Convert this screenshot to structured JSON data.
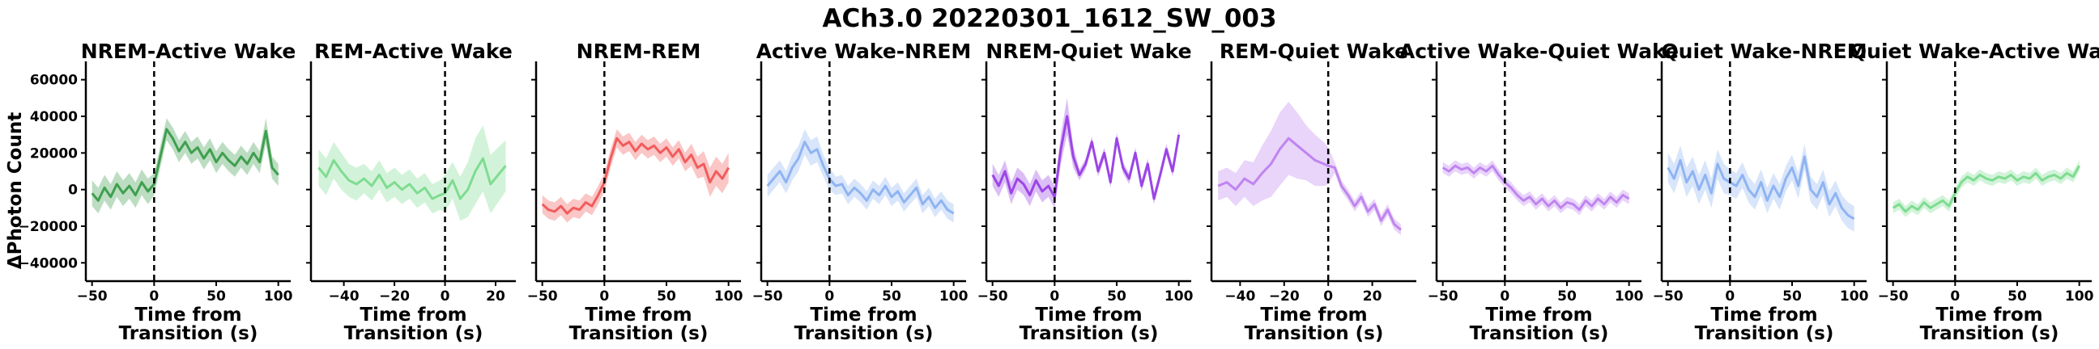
{
  "figure": {
    "suptitle": "ACh3.0 20220301_1612_SW_003",
    "ylabel": "ΔPhoton Count",
    "xlabel_line1": "Time from",
    "xlabel_line2": "Transition (s)"
  },
  "colors": {
    "green_dark": "#3f9f4f",
    "green_light": "#7fdc91",
    "red": "#f25c5c",
    "blue": "#8fb4f2",
    "purple_dark": "#9b45e6",
    "purple_light": "#bf85f0"
  },
  "chart_data": [
    {
      "type": "line",
      "title": "NREM-Active Wake",
      "color_key": "green_dark",
      "xlim": [
        -55,
        110
      ],
      "xticks": [
        -50,
        0,
        50,
        100
      ],
      "ylim": [
        -50000,
        70000
      ],
      "yticks": [
        -40000,
        -20000,
        0,
        20000,
        40000,
        60000
      ],
      "x": [
        -50,
        -45,
        -40,
        -35,
        -30,
        -25,
        -20,
        -15,
        -10,
        -5,
        0,
        5,
        10,
        15,
        20,
        25,
        30,
        35,
        40,
        45,
        50,
        55,
        60,
        65,
        70,
        75,
        80,
        85,
        90,
        95,
        100
      ],
      "mean": [
        -2000,
        -6000,
        1000,
        -4000,
        3000,
        -2000,
        2000,
        -3000,
        4000,
        -1000,
        3000,
        18000,
        33000,
        28000,
        21000,
        26000,
        20000,
        23000,
        17000,
        22000,
        15000,
        20000,
        16000,
        13000,
        18000,
        14000,
        20000,
        15000,
        32000,
        12000,
        8000
      ],
      "sem": [
        7000,
        7000,
        7000,
        7000,
        7000,
        7000,
        7000,
        7000,
        7000,
        7000,
        6000,
        6000,
        6000,
        6000,
        6000,
        6000,
        6000,
        6000,
        6000,
        6000,
        6000,
        6000,
        6000,
        6000,
        6000,
        6000,
        6000,
        6000,
        7000,
        6000,
        6000
      ]
    },
    {
      "type": "line",
      "title": "REM-Active Wake",
      "color_key": "green_light",
      "xlim": [
        -53,
        28
      ],
      "xticks": [
        -40,
        -20,
        0,
        20
      ],
      "ylim": [
        -50000,
        70000
      ],
      "yticks": [
        -40000,
        -20000,
        0,
        20000,
        40000,
        60000
      ],
      "x": [
        -50,
        -47,
        -44,
        -41,
        -38,
        -35,
        -32,
        -29,
        -26,
        -23,
        -20,
        -17,
        -14,
        -11,
        -8,
        -5,
        -2,
        0,
        3,
        6,
        9,
        12,
        15,
        18,
        21,
        24
      ],
      "mean": [
        12000,
        7000,
        16000,
        10000,
        5000,
        3000,
        6000,
        2000,
        8000,
        1000,
        4000,
        0,
        3000,
        -2000,
        1000,
        -5000,
        -3000,
        -2000,
        5000,
        -5000,
        0,
        10000,
        17000,
        3000,
        8000,
        13000
      ],
      "sem": [
        10000,
        10000,
        10000,
        10000,
        9000,
        9000,
        8000,
        8000,
        8000,
        8000,
        8000,
        8000,
        8000,
        8000,
        8000,
        8000,
        8000,
        10000,
        10000,
        12000,
        15000,
        18000,
        18000,
        16000,
        15000,
        14000
      ]
    },
    {
      "type": "line",
      "title": "NREM-REM",
      "color_key": "red",
      "xlim": [
        -55,
        110
      ],
      "xticks": [
        -50,
        0,
        50,
        100
      ],
      "ylim": [
        -50000,
        70000
      ],
      "yticks": [
        -40000,
        -20000,
        0,
        20000,
        40000,
        60000
      ],
      "x": [
        -50,
        -45,
        -40,
        -35,
        -30,
        -25,
        -20,
        -15,
        -10,
        -5,
        0,
        5,
        10,
        15,
        20,
        25,
        30,
        35,
        40,
        45,
        50,
        55,
        60,
        65,
        70,
        75,
        80,
        85,
        90,
        95,
        100
      ],
      "mean": [
        -8000,
        -11000,
        -12000,
        -9000,
        -13000,
        -10000,
        -11000,
        -7000,
        -9000,
        -3000,
        4000,
        17000,
        28000,
        24000,
        26000,
        21000,
        25000,
        22000,
        24000,
        20000,
        23000,
        18000,
        22000,
        15000,
        19000,
        12000,
        14000,
        4000,
        10000,
        6000,
        12000
      ],
      "sem": [
        5000,
        5000,
        5000,
        5000,
        5000,
        5000,
        5000,
        5000,
        5000,
        5000,
        5000,
        5000,
        5000,
        5000,
        5000,
        5000,
        5000,
        5000,
        5000,
        5000,
        5000,
        5000,
        5000,
        5000,
        6000,
        6000,
        7000,
        8000,
        8000,
        8000,
        8000
      ]
    },
    {
      "type": "line",
      "title": "Active Wake-NREM",
      "color_key": "blue",
      "xlim": [
        -55,
        110
      ],
      "xticks": [
        -50,
        0,
        50,
        100
      ],
      "ylim": [
        -50000,
        70000
      ],
      "yticks": [
        -40000,
        -20000,
        0,
        20000,
        40000,
        60000
      ],
      "x": [
        -50,
        -45,
        -40,
        -35,
        -30,
        -25,
        -20,
        -15,
        -10,
        -5,
        0,
        5,
        10,
        15,
        20,
        25,
        30,
        35,
        40,
        45,
        50,
        55,
        60,
        65,
        70,
        75,
        80,
        85,
        90,
        95,
        100
      ],
      "mean": [
        2000,
        6000,
        10000,
        4000,
        12000,
        17000,
        26000,
        20000,
        22000,
        13000,
        6000,
        2000,
        3000,
        -3000,
        1000,
        -2000,
        -6000,
        0,
        -3000,
        2000,
        -4000,
        -1000,
        -7000,
        -3000,
        1000,
        -8000,
        -4000,
        -10000,
        -6000,
        -11000,
        -13000
      ],
      "sem": [
        6000,
        6000,
        6000,
        6000,
        7000,
        7000,
        7000,
        7000,
        7000,
        6000,
        6000,
        5000,
        5000,
        5000,
        5000,
        5000,
        5000,
        5000,
        5000,
        5000,
        5000,
        5000,
        5000,
        5000,
        5000,
        5000,
        5000,
        5000,
        5000,
        5000,
        5000
      ]
    },
    {
      "type": "line",
      "title": "NREM-Quiet Wake",
      "color_key": "purple_dark",
      "xlim": [
        -55,
        110
      ],
      "xticks": [
        -50,
        0,
        50,
        100
      ],
      "ylim": [
        -50000,
        70000
      ],
      "yticks": [
        -40000,
        -20000,
        0,
        20000,
        40000,
        60000
      ],
      "x": [
        -50,
        -45,
        -40,
        -35,
        -30,
        -25,
        -20,
        -15,
        -10,
        -5,
        0,
        5,
        10,
        15,
        20,
        25,
        30,
        35,
        40,
        45,
        50,
        55,
        60,
        65,
        70,
        75,
        80,
        85,
        90,
        95,
        100
      ],
      "mean": [
        8000,
        2000,
        10000,
        -2000,
        6000,
        3000,
        -3000,
        5000,
        -1000,
        2000,
        -4000,
        22000,
        40000,
        18000,
        8000,
        14000,
        26000,
        10000,
        20000,
        4000,
        28000,
        12000,
        6000,
        20000,
        2000,
        14000,
        -5000,
        8000,
        22000,
        10000,
        30000
      ],
      "sem": [
        6000,
        6000,
        6000,
        6000,
        6000,
        6000,
        6000,
        6000,
        6000,
        6000,
        6000,
        8000,
        10000,
        6000,
        3000,
        3000,
        3000,
        3000,
        3000,
        3000,
        3000,
        3000,
        3000,
        3000,
        3000,
        3000,
        3000,
        3000,
        3000,
        3000,
        3000
      ]
    },
    {
      "type": "line",
      "title": "REM-Quiet Wake",
      "color_key": "purple_light",
      "xlim": [
        -53,
        40
      ],
      "xticks": [
        -40,
        -20,
        0,
        20
      ],
      "ylim": [
        -50000,
        70000
      ],
      "yticks": [
        -40000,
        -20000,
        0,
        20000,
        40000,
        60000
      ],
      "x": [
        -50,
        -46,
        -42,
        -38,
        -34,
        -30,
        -26,
        -22,
        -18,
        -14,
        -10,
        -6,
        -2,
        0,
        3,
        6,
        9,
        12,
        15,
        18,
        21,
        24,
        27,
        30,
        33
      ],
      "mean": [
        2000,
        4000,
        0,
        6000,
        3000,
        9000,
        14000,
        22000,
        28000,
        24000,
        20000,
        16000,
        14000,
        13000,
        12000,
        2000,
        -3000,
        -9000,
        -4000,
        -12000,
        -8000,
        -17000,
        -11000,
        -19000,
        -22000
      ],
      "sem": [
        8000,
        8000,
        9000,
        10000,
        12000,
        15000,
        18000,
        20000,
        20000,
        18000,
        15000,
        14000,
        12000,
        10000,
        3000,
        3000,
        3000,
        3000,
        3000,
        3000,
        3000,
        3000,
        3000,
        3000,
        3000
      ]
    },
    {
      "type": "line",
      "title": "Active Wake-Quiet Wake",
      "color_key": "purple_light",
      "xlim": [
        -55,
        110
      ],
      "xticks": [
        -50,
        0,
        50,
        100
      ],
      "ylim": [
        -50000,
        70000
      ],
      "yticks": [
        -40000,
        -20000,
        0,
        20000,
        40000,
        60000
      ],
      "x": [
        -50,
        -45,
        -40,
        -35,
        -30,
        -25,
        -20,
        -15,
        -10,
        -5,
        0,
        5,
        10,
        15,
        20,
        25,
        30,
        35,
        40,
        45,
        50,
        55,
        60,
        65,
        70,
        75,
        80,
        85,
        90,
        95,
        100
      ],
      "mean": [
        12000,
        10000,
        13000,
        11000,
        12000,
        9000,
        12000,
        10000,
        13000,
        8000,
        4000,
        1000,
        -3000,
        -6000,
        -4000,
        -8000,
        -5000,
        -9000,
        -6000,
        -10000,
        -7000,
        -8000,
        -11000,
        -6000,
        -9000,
        -5000,
        -8000,
        -4000,
        -7000,
        -3000,
        -5000
      ],
      "sem": [
        3000,
        3000,
        3000,
        3000,
        3000,
        3000,
        3000,
        3000,
        3000,
        3000,
        3000,
        3000,
        3000,
        3000,
        3000,
        3000,
        3000,
        3000,
        3000,
        3000,
        3000,
        3000,
        3000,
        3000,
        3000,
        3000,
        3000,
        3000,
        3000,
        3000,
        3000
      ]
    },
    {
      "type": "line",
      "title": "Quiet Wake-NREM",
      "color_key": "blue",
      "xlim": [
        -55,
        110
      ],
      "xticks": [
        -50,
        0,
        50,
        100
      ],
      "ylim": [
        -50000,
        70000
      ],
      "yticks": [
        -40000,
        -20000,
        0,
        20000,
        40000,
        60000
      ],
      "x": [
        -50,
        -45,
        -40,
        -35,
        -30,
        -25,
        -20,
        -15,
        -10,
        -5,
        0,
        5,
        10,
        15,
        20,
        25,
        30,
        35,
        40,
        45,
        50,
        55,
        60,
        65,
        70,
        75,
        80,
        85,
        90,
        95,
        100
      ],
      "mean": [
        12000,
        6000,
        16000,
        4000,
        10000,
        0,
        8000,
        -2000,
        14000,
        6000,
        4000,
        2000,
        8000,
        0,
        -4000,
        4000,
        -6000,
        2000,
        -4000,
        6000,
        12000,
        2000,
        18000,
        0,
        -4000,
        4000,
        -8000,
        -2000,
        -10000,
        -14000,
        -16000
      ],
      "sem": [
        8000,
        8000,
        8000,
        8000,
        8000,
        8000,
        8000,
        8000,
        8000,
        8000,
        7000,
        7000,
        7000,
        7000,
        7000,
        7000,
        7000,
        7000,
        7000,
        7000,
        7000,
        7000,
        7000,
        7000,
        7000,
        7000,
        7000,
        7000,
        7000,
        7000,
        7000
      ]
    },
    {
      "type": "line",
      "title": "Quiet Wake-Active Wake",
      "color_key": "green_light",
      "xlim": [
        -55,
        110
      ],
      "xticks": [
        -50,
        0,
        50,
        100
      ],
      "ylim": [
        -50000,
        70000
      ],
      "yticks": [
        -40000,
        -20000,
        0,
        20000,
        40000,
        60000
      ],
      "x": [
        -50,
        -45,
        -40,
        -35,
        -30,
        -25,
        -20,
        -15,
        -10,
        -5,
        0,
        5,
        10,
        15,
        20,
        25,
        30,
        35,
        40,
        45,
        50,
        55,
        60,
        65,
        70,
        75,
        80,
        85,
        90,
        95,
        100
      ],
      "mean": [
        -10000,
        -8000,
        -12000,
        -9000,
        -11000,
        -7000,
        -10000,
        -8000,
        -6000,
        -9000,
        -2000,
        4000,
        7000,
        5000,
        8000,
        6000,
        5000,
        7000,
        6000,
        8000,
        5000,
        7000,
        6000,
        9000,
        5000,
        7000,
        8000,
        6000,
        9000,
        7000,
        13000
      ],
      "sem": [
        3000,
        3000,
        3000,
        3000,
        3000,
        3000,
        3000,
        3000,
        3000,
        3000,
        3000,
        3000,
        3000,
        3000,
        3000,
        3000,
        3000,
        3000,
        3000,
        3000,
        3000,
        3000,
        3000,
        3000,
        3000,
        3000,
        3000,
        3000,
        3000,
        3000,
        3000
      ]
    }
  ]
}
